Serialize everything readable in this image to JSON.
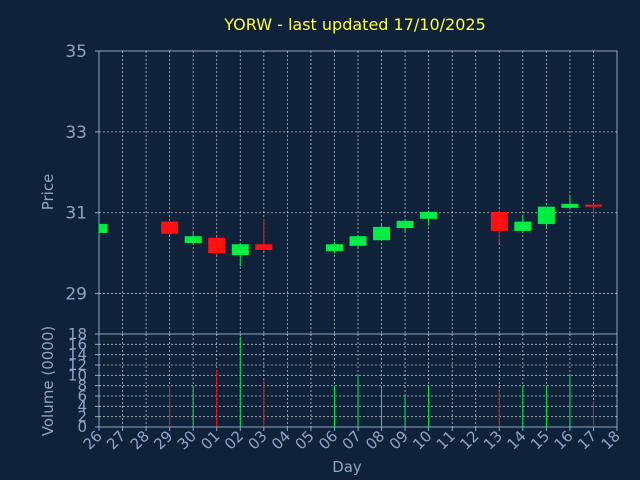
{
  "title": "YORW - last updated 17/10/2025",
  "colors": {
    "background": "#10213a",
    "title": "#ffff33",
    "axis_text": "#8aa6c8",
    "grid": "#ffffff",
    "up": "#00ee44",
    "down": "#ff1111"
  },
  "chart_data": {
    "type": "candlestick",
    "title": "YORW - last updated 17/10/2025",
    "xlabel": "Day",
    "price_panel": {
      "ylabel": "Price",
      "ylim": [
        28,
        35
      ],
      "yticks": [
        "29",
        "31",
        "33",
        "35"
      ]
    },
    "volume_panel": {
      "ylabel": "Volume (0000)",
      "ylim": [
        0,
        18
      ],
      "yticks": [
        "0",
        "2",
        "4",
        "6",
        "8",
        "10",
        "12",
        "14",
        "16",
        "18"
      ]
    },
    "x_ticks": [
      "26",
      "27",
      "28",
      "29",
      "30",
      "01",
      "02",
      "03",
      "04",
      "05",
      "06",
      "07",
      "08",
      "09",
      "10",
      "11",
      "12",
      "13",
      "14",
      "15",
      "16",
      "17",
      "18"
    ],
    "grid": true,
    "candles": [
      {
        "day": "26",
        "open": 30.5,
        "close": 30.72,
        "high": 30.75,
        "low": 30.45,
        "volume": 0
      },
      {
        "day": "29",
        "open": 30.78,
        "close": 30.48,
        "high": 30.82,
        "low": 30.45,
        "volume": 8
      },
      {
        "day": "30",
        "open": 30.25,
        "close": 30.42,
        "high": 30.5,
        "low": 30.2,
        "volume": 8
      },
      {
        "day": "01",
        "open": 30.38,
        "close": 30.0,
        "high": 30.4,
        "low": 29.95,
        "volume": 11
      },
      {
        "day": "02",
        "open": 29.95,
        "close": 30.22,
        "high": 30.25,
        "low": 29.68,
        "volume": 17.5
      },
      {
        "day": "03",
        "open": 30.22,
        "close": 30.08,
        "high": 30.85,
        "low": 30.05,
        "volume": 9
      },
      {
        "day": "06",
        "open": 30.05,
        "close": 30.22,
        "high": 30.28,
        "low": 30.0,
        "volume": 8
      },
      {
        "day": "07",
        "open": 30.18,
        "close": 30.42,
        "high": 30.45,
        "low": 30.15,
        "volume": 10
      },
      {
        "day": "08",
        "open": 30.32,
        "close": 30.65,
        "high": 30.7,
        "low": 30.3,
        "volume": 7.5
      },
      {
        "day": "09",
        "open": 30.62,
        "close": 30.8,
        "high": 30.85,
        "low": 30.55,
        "volume": 6
      },
      {
        "day": "10",
        "open": 30.85,
        "close": 31.02,
        "high": 31.05,
        "low": 30.68,
        "volume": 8
      },
      {
        "day": "13",
        "open": 31.02,
        "close": 30.55,
        "high": 31.05,
        "low": 30.25,
        "volume": 7
      },
      {
        "day": "14",
        "open": 30.55,
        "close": 30.78,
        "high": 30.95,
        "low": 30.52,
        "volume": 8
      },
      {
        "day": "15",
        "open": 30.72,
        "close": 31.15,
        "high": 31.15,
        "low": 30.65,
        "volume": 8
      },
      {
        "day": "16",
        "open": 31.12,
        "close": 31.22,
        "high": 31.45,
        "low": 31.08,
        "volume": 10
      },
      {
        "day": "17",
        "open": 31.2,
        "close": 31.15,
        "high": 31.22,
        "low": 30.98,
        "volume": 5
      }
    ]
  }
}
